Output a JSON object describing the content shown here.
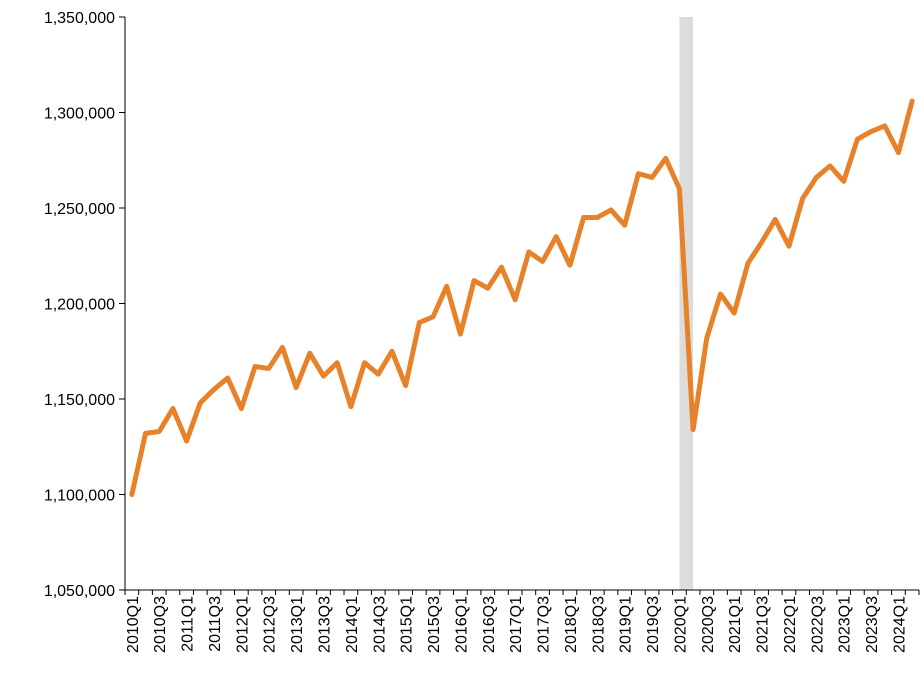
{
  "chart_data": {
    "type": "line",
    "categories": [
      "2010Q1",
      null,
      "2010Q3",
      null,
      "2011Q1",
      null,
      "2011Q3",
      null,
      "2012Q1",
      null,
      "2012Q3",
      null,
      "2013Q1",
      null,
      "2013Q3",
      null,
      "2014Q1",
      null,
      "2014Q3",
      null,
      "2015Q1",
      null,
      "2015Q3",
      null,
      "2016Q1",
      null,
      "2016Q3",
      null,
      "2017Q1",
      null,
      "2017Q3",
      null,
      "2018Q1",
      null,
      "2018Q3",
      null,
      "2019Q1",
      null,
      "2019Q3",
      null,
      "2020Q1",
      null,
      "2020Q3",
      null,
      "2021Q1",
      null,
      "2021Q3",
      null,
      "2022Q1",
      null,
      "2022Q3",
      null,
      "2023Q1",
      null,
      "2023Q3",
      null,
      "2024Q1",
      null
    ],
    "series": [
      {
        "color": "#e8822a",
        "values": [
          1100000,
          1132000,
          1133000,
          1145000,
          1128000,
          1148000,
          1155000,
          1161000,
          1145000,
          1167000,
          1166000,
          1177000,
          1156000,
          1174000,
          1162000,
          1169000,
          1146000,
          1169000,
          1163000,
          1175000,
          1157000,
          1190000,
          1193000,
          1209000,
          1184000,
          1212000,
          1208000,
          1219000,
          1202000,
          1227000,
          1222000,
          1235000,
          1220000,
          1245000,
          1245000,
          1249000,
          1241000,
          1268000,
          1266000,
          1276000,
          1260000,
          1134000,
          1182000,
          1205000,
          1195000,
          1221000,
          1232000,
          1244000,
          1230000,
          1255000,
          1266000,
          1272000,
          1264000,
          1286000,
          1290000,
          1293000,
          1279000,
          1306000
        ]
      }
    ],
    "ylim": [
      1050000,
      1350000
    ],
    "yticks": [
      {
        "value": 1050000,
        "label": "1,050,000"
      },
      {
        "value": 1100000,
        "label": "1,100,000"
      },
      {
        "value": 1150000,
        "label": "1,150,000"
      },
      {
        "value": 1200000,
        "label": "1,200,000"
      },
      {
        "value": 1250000,
        "label": "1,250,000"
      },
      {
        "value": 1300000,
        "label": "1,300,000"
      },
      {
        "value": 1350000,
        "label": "1,350,000"
      }
    ],
    "grid": false
  }
}
